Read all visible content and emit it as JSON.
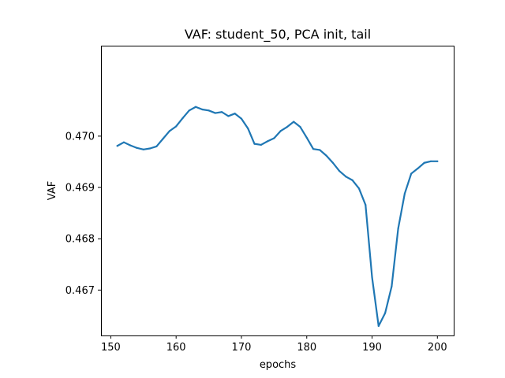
{
  "chart_data": {
    "type": "line",
    "title": "VAF: student_50, PCA init, tail",
    "xlabel": "epochs",
    "ylabel": "VAF",
    "xlim": [
      148.5,
      202.5
    ],
    "ylim": [
      0.466115,
      0.471763
    ],
    "xticks": [
      150,
      160,
      170,
      180,
      190,
      200
    ],
    "yticks": [
      0.467,
      0.468,
      0.469,
      0.47
    ],
    "ytick_labels": [
      "0.467",
      "0.468",
      "0.469",
      "0.470"
    ],
    "grid": false,
    "series": [
      {
        "color": "#1f77b4",
        "x": [
          151,
          152,
          153,
          154,
          155,
          156,
          157,
          158,
          159,
          160,
          161,
          162,
          163,
          164,
          165,
          166,
          167,
          168,
          169,
          170,
          171,
          172,
          173,
          174,
          175,
          176,
          177,
          178,
          179,
          180,
          181,
          182,
          183,
          184,
          185,
          186,
          187,
          188,
          189,
          190,
          191,
          192,
          193,
          194,
          195,
          196,
          197,
          198,
          199,
          200
        ],
        "y": [
          0.46981,
          0.46988,
          0.46982,
          0.46977,
          0.46974,
          0.46976,
          0.4698,
          0.46995,
          0.4701,
          0.47019,
          0.47035,
          0.4705,
          0.47057,
          0.47052,
          0.4705,
          0.47045,
          0.47047,
          0.47039,
          0.47044,
          0.47034,
          0.47015,
          0.46985,
          0.46983,
          0.4699,
          0.46996,
          0.4701,
          0.47018,
          0.47028,
          0.47018,
          0.46997,
          0.46975,
          0.46973,
          0.46962,
          0.46948,
          0.46932,
          0.46921,
          0.46914,
          0.46898,
          0.46866,
          0.46725,
          0.4663,
          0.46655,
          0.46707,
          0.4682,
          0.46888,
          0.46927,
          0.46937,
          0.46948,
          0.46951,
          0.46951
        ]
      }
    ]
  }
}
